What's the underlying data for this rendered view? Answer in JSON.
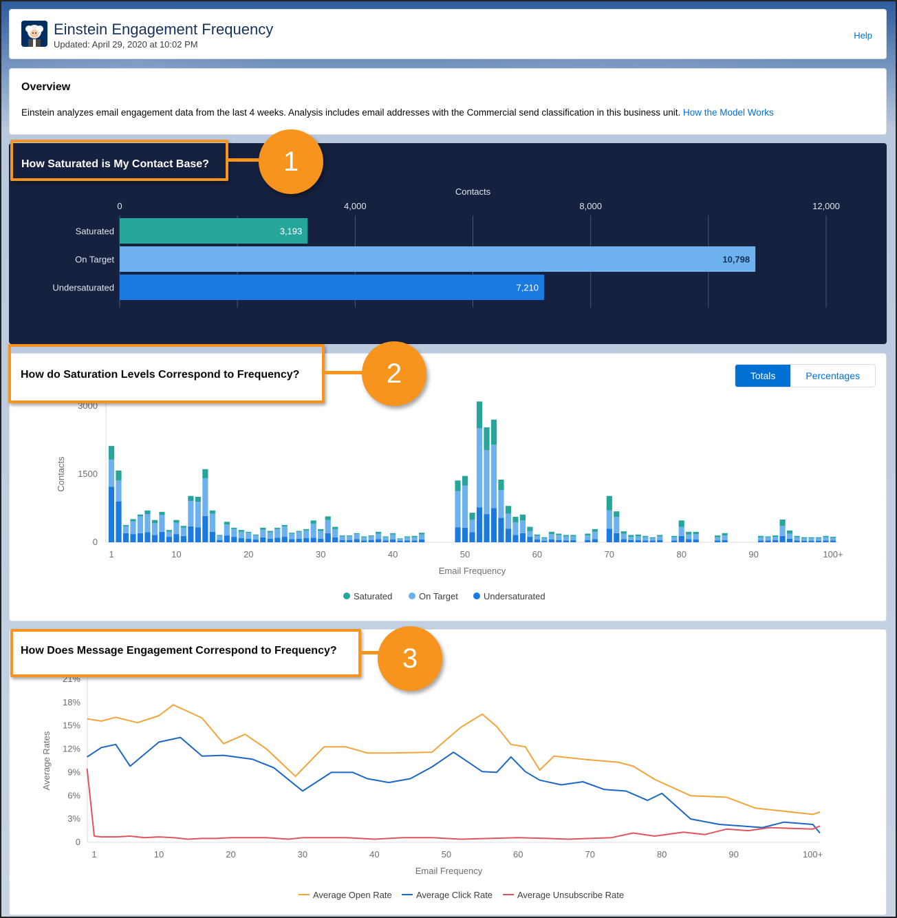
{
  "header": {
    "title": "Einstein Engagement Frequency",
    "updated": "Updated: April 29, 2020 at 10:02 PM",
    "help": "Help",
    "avatar_icon": "einstein-avatar-icon"
  },
  "overview": {
    "title": "Overview",
    "text": "Einstein analyzes email engagement data from the last 4 weeks. Analysis includes email addresses with the Commercial send classification in this business unit. ",
    "link": "How the Model Works"
  },
  "colors": {
    "saturated": "#26a69a",
    "on_target": "#6db2ef",
    "undersaturated": "#1b7ae0",
    "open_rate": "#f2a33a",
    "click_rate": "#1a66c7",
    "unsubscribe_rate": "#e0545f",
    "callout": "#f7941d"
  },
  "callouts": [
    "1",
    "2",
    "3"
  ],
  "section1": {
    "title": "How Saturated is My Contact Base?",
    "chart_data": {
      "type": "bar",
      "orientation": "horizontal",
      "xlabel": "Contacts",
      "xlim": [
        0,
        12000
      ],
      "ticks": [
        "0",
        "4,000",
        "8,000",
        "12,000"
      ],
      "tick_values": [
        0,
        4000,
        8000,
        12000
      ],
      "categories": [
        "Saturated",
        "On Target",
        "Undersaturated"
      ],
      "values": [
        3193,
        10798,
        7210
      ],
      "value_labels": [
        "3,193",
        "10,798",
        "7,210"
      ]
    }
  },
  "section2": {
    "title": "How do Saturation Levels Correspond to Frequency?",
    "toggle": [
      "Totals",
      "Percentages"
    ],
    "toggle_active": "Totals",
    "chart_data": {
      "type": "bar",
      "stacked": true,
      "xlabel": "Email Frequency",
      "ylabel": "Contacts",
      "ylim": [
        0,
        3000
      ],
      "y_ticks": [
        "0",
        "1500",
        "3000"
      ],
      "y_tick_values": [
        0,
        1500,
        3000
      ],
      "x_ticks": [
        "1",
        "10",
        "20",
        "30",
        "40",
        "50",
        "60",
        "70",
        "80",
        "90",
        "100+"
      ],
      "x_tick_values": [
        1,
        10,
        20,
        30,
        40,
        50,
        60,
        70,
        80,
        90,
        101
      ],
      "x_range": [
        1,
        101
      ],
      "legend": [
        "Saturated",
        "On Target",
        "Undersaturated"
      ],
      "x": [
        1,
        2,
        3,
        4,
        5,
        6,
        7,
        8,
        9,
        10,
        11,
        12,
        13,
        14,
        15,
        16,
        17,
        18,
        19,
        20,
        21,
        22,
        23,
        24,
        25,
        26,
        27,
        28,
        29,
        30,
        31,
        32,
        33,
        34,
        35,
        36,
        37,
        38,
        39,
        40,
        41,
        42,
        43,
        44,
        45,
        46,
        47,
        48,
        49,
        50,
        51,
        52,
        53,
        54,
        55,
        56,
        57,
        58,
        59,
        60,
        61,
        62,
        63,
        64,
        65,
        66,
        67,
        68,
        69,
        70,
        71,
        72,
        73,
        74,
        75,
        76,
        77,
        78,
        79,
        80,
        81,
        82,
        83,
        84,
        85,
        86,
        87,
        88,
        89,
        90,
        91,
        92,
        93,
        94,
        95,
        96,
        97,
        98,
        99,
        100,
        101
      ],
      "series": [
        {
          "name": "Undersaturated",
          "values": [
            1220,
            900,
            200,
            180,
            200,
            220,
            160,
            230,
            120,
            180,
            140,
            350,
            330,
            580,
            230,
            50,
            150,
            120,
            90,
            80,
            60,
            110,
            80,
            100,
            120,
            70,
            80,
            90,
            100,
            80,
            200,
            110,
            50,
            50,
            70,
            40,
            50,
            70,
            40,
            60,
            30,
            40,
            40,
            60,
            0,
            0,
            0,
            0,
            330,
            320,
            220,
            770,
            620,
            750,
            540,
            300,
            160,
            200,
            120,
            60,
            30,
            60,
            50,
            40,
            50,
            0,
            50,
            70,
            0,
            300,
            200,
            70,
            50,
            50,
            40,
            40,
            50,
            0,
            40,
            140,
            70,
            60,
            0,
            0,
            40,
            50,
            0,
            0,
            0,
            0,
            40,
            40,
            50,
            140,
            80,
            40,
            30,
            30,
            30,
            40,
            40
          ]
        },
        {
          "name": "On Target",
          "values": [
            600,
            460,
            150,
            280,
            370,
            400,
            260,
            370,
            110,
            250,
            180,
            560,
            560,
            830,
            400,
            90,
            240,
            170,
            140,
            130,
            90,
            170,
            140,
            190,
            230,
            120,
            150,
            170,
            310,
            170,
            290,
            180,
            80,
            80,
            110,
            70,
            80,
            120,
            70,
            110,
            50,
            70,
            70,
            110,
            0,
            0,
            0,
            0,
            800,
            930,
            280,
            1740,
            1410,
            1400,
            610,
            330,
            280,
            280,
            130,
            80,
            60,
            120,
            110,
            90,
            80,
            0,
            100,
            160,
            0,
            400,
            360,
            120,
            70,
            80,
            70,
            50,
            80,
            0,
            70,
            200,
            100,
            120,
            0,
            0,
            70,
            100,
            0,
            0,
            0,
            0,
            70,
            70,
            70,
            220,
            110,
            70,
            60,
            60,
            60,
            70,
            60
          ]
        },
        {
          "name": "Saturated",
          "values": [
            300,
            220,
            30,
            50,
            40,
            80,
            70,
            70,
            40,
            60,
            40,
            110,
            110,
            200,
            70,
            20,
            60,
            30,
            40,
            20,
            20,
            40,
            30,
            30,
            30,
            20,
            20,
            30,
            70,
            40,
            80,
            50,
            20,
            20,
            20,
            20,
            20,
            40,
            20,
            30,
            10,
            20,
            30,
            40,
            0,
            0,
            0,
            0,
            230,
            210,
            150,
            590,
            500,
            550,
            230,
            170,
            120,
            130,
            90,
            30,
            20,
            50,
            30,
            30,
            30,
            0,
            40,
            60,
            0,
            320,
            120,
            50,
            40,
            40,
            30,
            20,
            30,
            0,
            30,
            140,
            60,
            50,
            0,
            0,
            40,
            50,
            0,
            0,
            0,
            0,
            30,
            20,
            30,
            140,
            70,
            30,
            20,
            20,
            20,
            30,
            20
          ]
        }
      ]
    }
  },
  "section3": {
    "title": "How Does Message Engagement Correspond to Frequency?",
    "chart_data": {
      "type": "line",
      "xlabel": "Email Frequency",
      "ylabel": "Average Rates",
      "ylim": [
        0,
        21
      ],
      "y_ticks": [
        "0",
        "3%",
        "6%",
        "9%",
        "12%",
        "15%",
        "18%",
        "21%"
      ],
      "y_tick_values": [
        0,
        3,
        6,
        9,
        12,
        15,
        18,
        21
      ],
      "x_ticks": [
        "1",
        "10",
        "20",
        "30",
        "40",
        "50",
        "60",
        "70",
        "80",
        "90",
        "100+"
      ],
      "x_tick_values": [
        1,
        10,
        20,
        30,
        40,
        50,
        60,
        70,
        80,
        90,
        101
      ],
      "x_range": [
        1,
        102
      ],
      "series": [
        {
          "name": "Average Open Rate",
          "x": [
            0,
            2,
            4,
            7,
            10,
            12,
            16,
            19,
            22,
            25,
            29,
            33,
            36,
            39,
            42,
            48,
            52,
            55,
            57,
            59,
            61,
            63,
            65,
            69,
            74,
            76,
            79,
            84,
            89,
            93,
            96,
            101,
            102
          ],
          "values": [
            15.9,
            15.6,
            16.1,
            15.4,
            16.3,
            17.7,
            16.0,
            12.7,
            13.9,
            12.0,
            8.5,
            12.3,
            12.3,
            11.5,
            11.5,
            11.6,
            14.8,
            16.5,
            14.9,
            12.6,
            12.3,
            9.3,
            11.1,
            10.7,
            10.3,
            9.8,
            8.1,
            6.0,
            5.8,
            4.4,
            4.1,
            3.6,
            3.9
          ]
        },
        {
          "name": "Average Click Rate",
          "x": [
            0,
            2,
            4,
            6,
            10,
            13,
            16,
            19,
            23,
            26,
            30,
            34,
            37,
            39,
            42,
            45,
            48,
            51,
            55,
            57,
            59,
            61,
            63,
            66,
            69,
            72,
            75,
            78,
            80,
            84,
            88,
            91,
            94,
            97,
            101,
            102
          ],
          "values": [
            11.0,
            12.2,
            12.6,
            9.8,
            12.9,
            13.5,
            11.1,
            11.2,
            10.7,
            9.6,
            6.6,
            9.0,
            9.0,
            8.2,
            7.7,
            8.2,
            9.7,
            11.6,
            9.1,
            9.0,
            11.0,
            9.1,
            8.0,
            7.4,
            7.8,
            6.8,
            6.6,
            5.4,
            6.3,
            3.0,
            2.3,
            2.1,
            1.9,
            2.6,
            2.3,
            1.2
          ]
        },
        {
          "name": "Average Unsubscribe Rate",
          "x": [
            0,
            1,
            2,
            4,
            6,
            8,
            10,
            12,
            14,
            16,
            18,
            20,
            22,
            25,
            28,
            30,
            33,
            36,
            40,
            44,
            48,
            52,
            56,
            60,
            64,
            67,
            70,
            73,
            76,
            79,
            83,
            86,
            89,
            92,
            95,
            98,
            101,
            102
          ],
          "values": [
            9.5,
            0.8,
            0.7,
            0.7,
            0.8,
            0.6,
            0.7,
            0.6,
            0.4,
            0.5,
            0.5,
            0.6,
            0.6,
            0.6,
            0.4,
            0.6,
            0.6,
            0.6,
            0.4,
            0.6,
            0.6,
            0.4,
            0.5,
            0.6,
            0.5,
            0.4,
            0.5,
            0.6,
            1.2,
            0.8,
            1.3,
            1.0,
            1.7,
            1.5,
            1.9,
            1.8,
            1.7,
            2.1
          ]
        }
      ]
    }
  }
}
